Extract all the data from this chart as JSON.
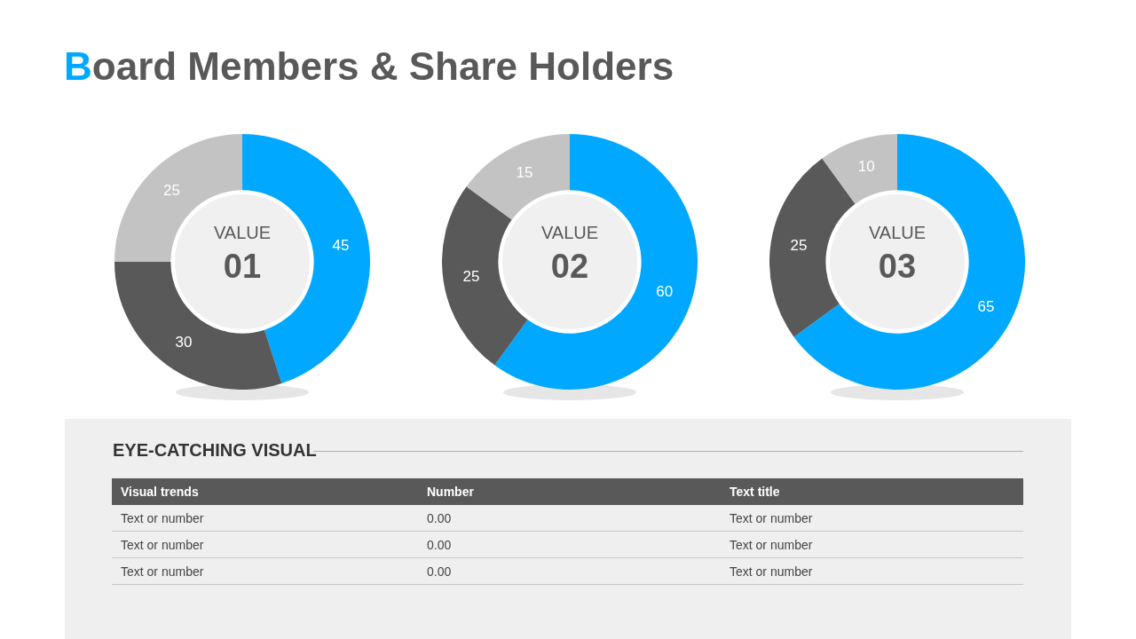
{
  "chart_data": [
    {
      "type": "other",
      "title": "Board Members & Share Holders"
    },
    {
      "type": "donut",
      "title": "VALUE",
      "subtitle": "01",
      "categories": [
        null,
        null,
        null
      ],
      "values": [
        45,
        30,
        25
      ],
      "colors": [
        "#00a8ff",
        "#595959",
        "#c3c3c3"
      ],
      "data_labels": true,
      "legend": false
    },
    {
      "type": "donut",
      "title": "VALUE",
      "subtitle": "02",
      "categories": [
        null,
        null,
        null
      ],
      "values": [
        60,
        25,
        15
      ],
      "colors": [
        "#00a8ff",
        "#595959",
        "#c3c3c3"
      ],
      "data_labels": true,
      "legend": false
    },
    {
      "type": "donut",
      "title": "VALUE",
      "subtitle": "03",
      "categories": [
        null,
        null,
        null
      ],
      "values": [
        65,
        25,
        10
      ],
      "colors": [
        "#00a8ff",
        "#595959",
        "#c3c3c3"
      ],
      "data_labels": true,
      "legend": false
    },
    {
      "type": "other",
      "title": "EYE-CATCHING VISUAL",
      "annotations": [
        "Visual trends",
        "Number",
        "Text title",
        "Text or number",
        "0.00",
        "Text or number",
        "Text or number",
        "0.00",
        "Text or number",
        "Text or number",
        "0.00",
        "Text or number"
      ]
    }
  ]
}
